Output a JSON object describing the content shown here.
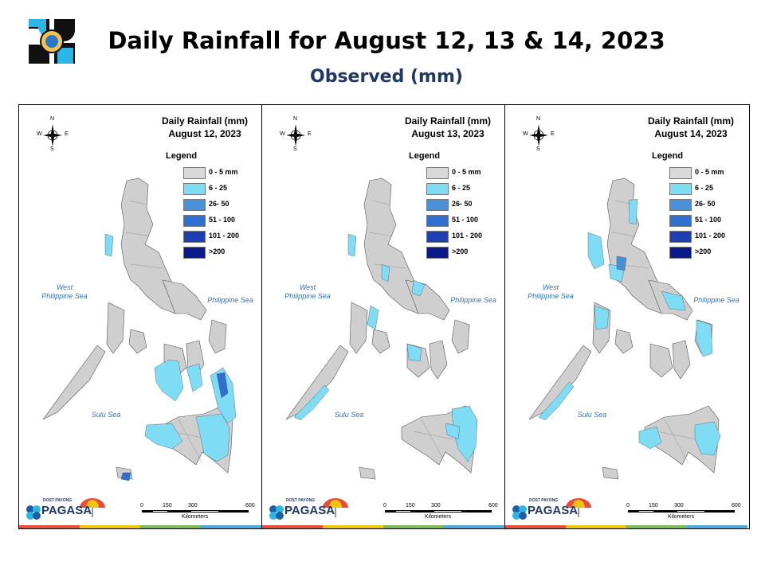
{
  "header": {
    "title": "Daily Rainfall for August 12, 13 & 14, 2023",
    "subtitle": "Observed (mm)"
  },
  "legend": {
    "heading": "Legend",
    "classes": [
      {
        "label": "0 - 5 mm",
        "color": "#d9d9d9"
      },
      {
        "label": "6 - 25",
        "color": "#7fdcf5"
      },
      {
        "label": "26- 50",
        "color": "#4a90d9"
      },
      {
        "label": "51 - 100",
        "color": "#2f6fd0"
      },
      {
        "label": "101 - 200",
        "color": "#1f3fb0"
      },
      {
        "label": ">200",
        "color": "#0b1a8a"
      }
    ]
  },
  "panels": [
    {
      "title_line1": "Daily Rainfall (mm)",
      "title_line2": "August 12, 2023"
    },
    {
      "title_line1": "Daily Rainfall (mm)",
      "title_line2": "August 13, 2023"
    },
    {
      "title_line1": "Daily Rainfall (mm)",
      "title_line2": "August 14, 2023"
    }
  ],
  "labels": {
    "west_sea_1": "West",
    "west_sea_2": "Philippine Sea",
    "east_sea": "Philippine Sea",
    "sulu_sea": "Sulu Sea",
    "compass_n": "N",
    "compass_s": "S",
    "compass_e": "E",
    "compass_w": "W",
    "brand": "PAGASA",
    "brand_small": "DOST PAYONG",
    "scale_ticks": [
      "0",
      "150",
      "300",
      "600"
    ],
    "scale_unit": "Kilometers"
  },
  "colors": {
    "land": "#cfcfcf",
    "land_stroke": "#555555",
    "title_blue": "#1f3864",
    "bottom_bar": [
      "#e74c3c",
      "#f1c40f",
      "#7fba5a",
      "#4fa6d8"
    ]
  }
}
